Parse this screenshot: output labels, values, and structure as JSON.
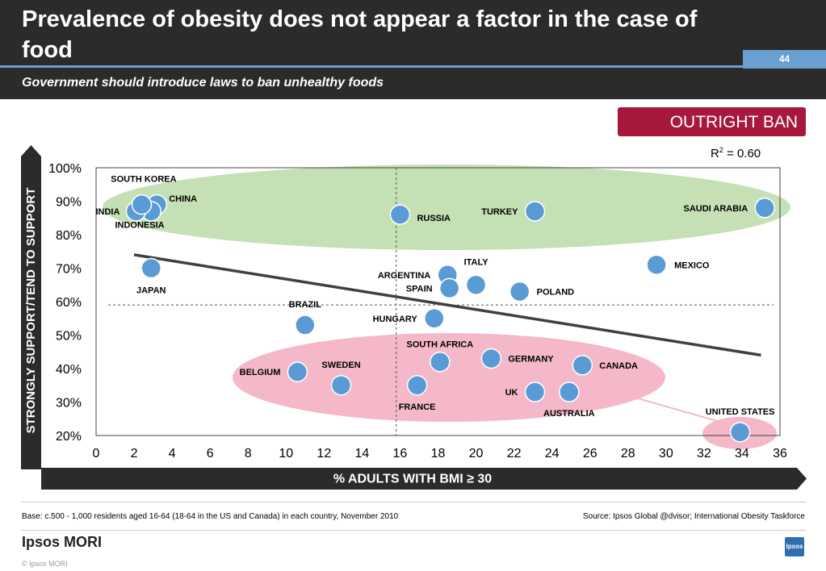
{
  "header": {
    "title": "Prevalence of obesity does not appear a factor in the case of food",
    "subtitle": "Government should introduce laws to ban unhealthy foods",
    "page_number": "44"
  },
  "badge": {
    "label": "OUTRIGHT BAN"
  },
  "r_squared": "= 0.60",
  "colors": {
    "point": "#5b9bd5",
    "trendline": "#404040",
    "green_cluster": "#c5e0b4",
    "pink_cluster": "#f4b8c8",
    "badge": "#a6193c",
    "header": "#2b2b2b"
  },
  "chart_data": {
    "type": "scatter",
    "xlabel": "% ADULTS WITH BMI ≥ 30",
    "ylabel": "STRONGLY SUPPORT/TEND TO SUPPORT",
    "xlim": [
      0,
      36
    ],
    "ylim": [
      20,
      100
    ],
    "x_ticks": [
      "0",
      "2",
      "4",
      "6",
      "8",
      "10",
      "12",
      "14",
      "16",
      "18",
      "20",
      "22",
      "24",
      "26",
      "28",
      "30",
      "32",
      "34",
      "36"
    ],
    "y_ticks": [
      "20%",
      "30%",
      "40%",
      "50%",
      "60%",
      "70%",
      "80%",
      "90%",
      "100%"
    ],
    "reference_lines": {
      "x": 15.8,
      "y": 59
    },
    "trendline": {
      "x": [
        2,
        35
      ],
      "y": [
        74,
        44
      ]
    },
    "points": [
      {
        "label": "SOUTH KOREA",
        "x": 3.2,
        "y": 89
      },
      {
        "label": "CHINA",
        "x": 2.9,
        "y": 87
      },
      {
        "label": "INDIA",
        "x": 2.1,
        "y": 87
      },
      {
        "label": "INDONESIA",
        "x": 2.4,
        "y": 89
      },
      {
        "label": "JAPAN",
        "x": 2.9,
        "y": 70
      },
      {
        "label": "RUSSIA",
        "x": 16,
        "y": 86
      },
      {
        "label": "TURKEY",
        "x": 23.1,
        "y": 87
      },
      {
        "label": "SAUDI ARABIA",
        "x": 35.2,
        "y": 88
      },
      {
        "label": "MEXICO",
        "x": 29.5,
        "y": 71
      },
      {
        "label": "ARGENTINA",
        "x": 18.5,
        "y": 68
      },
      {
        "label": "ITALY",
        "x": 20,
        "y": 65
      },
      {
        "label": "SPAIN",
        "x": 18.6,
        "y": 64
      },
      {
        "label": "POLAND",
        "x": 22.3,
        "y": 63
      },
      {
        "label": "HUNGARY",
        "x": 17.8,
        "y": 55
      },
      {
        "label": "BRAZIL",
        "x": 11,
        "y": 53
      },
      {
        "label": "SOUTH AFRICA",
        "x": 18.1,
        "y": 42
      },
      {
        "label": "GERMANY",
        "x": 20.8,
        "y": 43
      },
      {
        "label": "CANADA",
        "x": 25.6,
        "y": 41
      },
      {
        "label": "BELGIUM",
        "x": 10.6,
        "y": 39
      },
      {
        "label": "SWEDEN",
        "x": 12.9,
        "y": 35
      },
      {
        "label": "FRANCE",
        "x": 16.9,
        "y": 35
      },
      {
        "label": "UK",
        "x": 23.1,
        "y": 33
      },
      {
        "label": "AUSTRALIA",
        "x": 24.9,
        "y": 33
      },
      {
        "label": "UNITED STATES",
        "x": 33.9,
        "y": 21
      }
    ]
  },
  "footer": {
    "base": "Base: c.500 - 1,000 residents aged 16-64 (18-64 in the US and Canada) in each country, November 2010",
    "source": "Source: Ipsos Global @dvisor; International Obesity Taskforce",
    "brand": "Ipsos MORI",
    "copyright": "© Ipsos MORI",
    "logo_text": "Ipsos"
  }
}
